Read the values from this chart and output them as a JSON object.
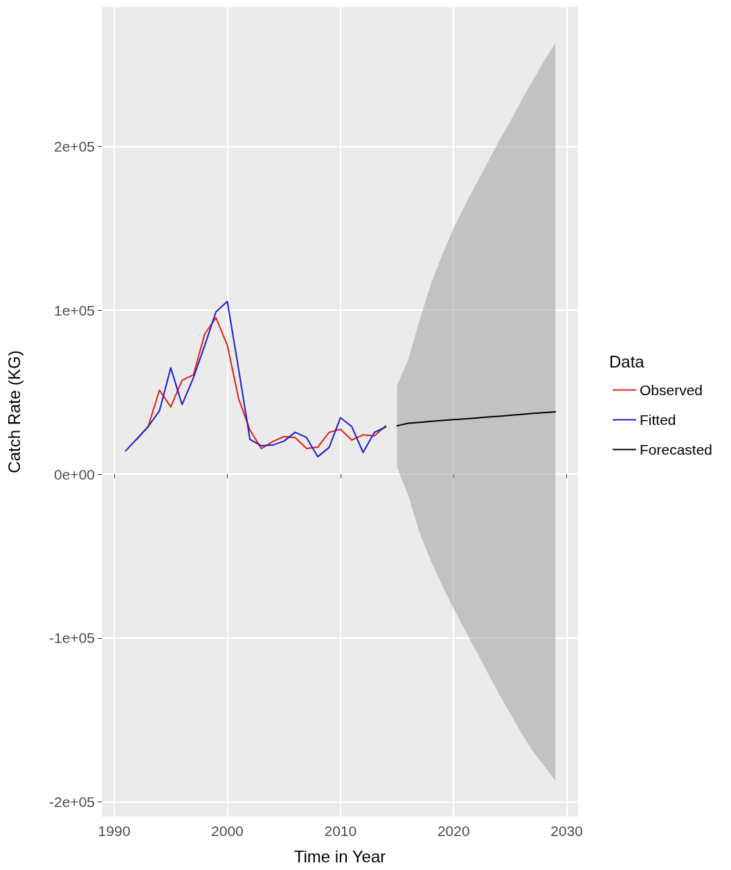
{
  "chart_data": {
    "type": "line",
    "xlabel": "Time in Year",
    "ylabel": "Catch Rate (KG)",
    "legend_title": "Data",
    "legend": "right",
    "grid": true,
    "xlim": [
      1988.9,
      2031
    ],
    "xticks": [
      1990,
      2000,
      2010,
      2020,
      2030
    ],
    "ylim": [
      -209000,
      285000
    ],
    "yticks": [
      {
        "value": -200000,
        "label": "-2e+05"
      },
      {
        "value": -100000,
        "label": "-1e+05"
      },
      {
        "value": 0,
        "label": "0e+00"
      },
      {
        "value": 100000,
        "label": "1e+05"
      },
      {
        "value": 200000,
        "label": "2e+05"
      }
    ],
    "series": [
      {
        "name": "Observed",
        "color": "#e0201b",
        "x": [
          1992,
          1993,
          1994,
          1995,
          1996,
          1997,
          1998,
          1999,
          2000,
          2001,
          2002,
          2003,
          2004,
          2005,
          2006,
          2007,
          2008,
          2009,
          2010,
          2011,
          2012,
          2013,
          2014
        ],
        "values": [
          21200,
          29000,
          51300,
          41000,
          57300,
          60500,
          85500,
          95400,
          78500,
          46000,
          26900,
          15600,
          19800,
          22900,
          22300,
          15600,
          16500,
          25500,
          27300,
          20800,
          24000,
          23300,
          29400
        ]
      },
      {
        "name": "Fitted",
        "color": "#1c1ccc",
        "x": [
          1991,
          1992,
          1993,
          1994,
          1995,
          1996,
          1997,
          1998,
          1999,
          2000,
          2001,
          2002,
          2003,
          2004,
          2005,
          2006,
          2007,
          2008,
          2009,
          2010,
          2011,
          2012,
          2013,
          2014
        ],
        "values": [
          14100,
          21500,
          29000,
          38600,
          64800,
          42400,
          58700,
          78500,
          99000,
          105300,
          64000,
          21200,
          17300,
          17700,
          20100,
          25500,
          22300,
          10600,
          16300,
          34400,
          29000,
          13200,
          25500,
          28700
        ]
      },
      {
        "name": "Forecasted",
        "color": "#000000",
        "x": [
          2015,
          2016,
          2017,
          2018,
          2019,
          2020,
          2021,
          2022,
          2023,
          2024,
          2025,
          2026,
          2027,
          2028,
          2029
        ],
        "values": [
          29500,
          31000,
          31600,
          32200,
          32700,
          33200,
          33700,
          34200,
          34800,
          35300,
          35900,
          36400,
          37000,
          37500,
          38000
        ],
        "lower": [
          4200,
          -13000,
          -36000,
          -53000,
          -68000,
          -82000,
          -95000,
          -108000,
          -121000,
          -134000,
          -146000,
          -158000,
          -169000,
          -178000,
          -187000
        ],
        "upper": [
          54000,
          70000,
          94000,
          116000,
          134000,
          150000,
          164000,
          177000,
          190000,
          203000,
          215000,
          228000,
          240000,
          252000,
          263000
        ]
      }
    ]
  }
}
